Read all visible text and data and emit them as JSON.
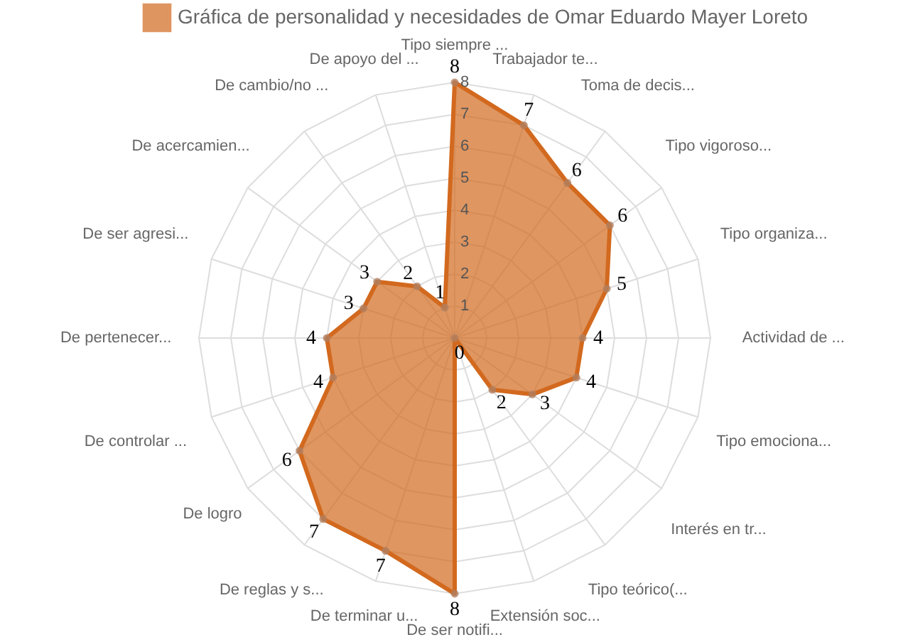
{
  "chart_data": {
    "type": "radar",
    "categories": [
      "Tipo siempre ...",
      "Trabajador te...",
      "Toma de decis...",
      "Tipo vigoroso...",
      "Tipo organiza...",
      "Actividad de ...",
      "Tipo emociona...",
      "Interés en tr...",
      "Tipo teórico(...",
      "Extensión soc...",
      "De ser notifi...",
      "De terminar u...",
      "De reglas y s...",
      "De logro",
      "De controlar ...",
      "De pertenecer...",
      "De ser agresi...",
      "De acercamien...",
      "De cambio/no ...",
      "De apoyo del ..."
    ],
    "series": [
      {
        "name": "Gráfica de personalidad y necesidades de Omar Eduardo Mayer Loreto",
        "color": "#d2691e",
        "values": [
          8,
          7,
          6,
          6,
          5,
          4,
          4,
          3,
          2,
          0,
          8,
          7,
          7,
          6,
          4,
          4,
          3,
          3,
          2,
          1
        ]
      }
    ],
    "ylim": [
      0,
      8
    ],
    "yticks": [
      1,
      2,
      3,
      4,
      5,
      6,
      7,
      8
    ],
    "grid": true,
    "legend": "top",
    "marker": "circle",
    "data_labels": true
  }
}
